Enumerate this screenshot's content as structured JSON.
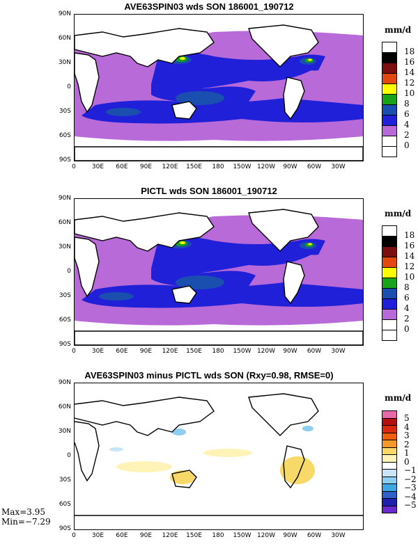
{
  "panels": [
    {
      "title": "AVE63SPIN03 wds SON 186001_190712",
      "units": "mm/d",
      "colorbar": {
        "labels": [
          "18",
          "16",
          "14",
          "12",
          "10",
          "8",
          "6",
          "4",
          "2",
          "0"
        ],
        "colors": [
          "#ffffff",
          "#000000",
          "#7a0f0f",
          "#e04a10",
          "#ffff00",
          "#1aa31a",
          "#1a4fb0",
          "#2020d8",
          "#b86ad8",
          "#ffffff",
          "#ffffff"
        ]
      }
    },
    {
      "title": "PICTL wds SON 186001_190712",
      "units": "mm/d",
      "colorbar": {
        "labels": [
          "18",
          "16",
          "14",
          "12",
          "10",
          "8",
          "6",
          "4",
          "2",
          "0"
        ],
        "colors": [
          "#ffffff",
          "#000000",
          "#7a0f0f",
          "#e04a10",
          "#ffff00",
          "#1aa31a",
          "#1a4fb0",
          "#2020d8",
          "#b86ad8",
          "#ffffff",
          "#ffffff"
        ]
      }
    },
    {
      "title": "AVE63SPIN03 minus PICTL wds SON (Rxy=0.98, RMSE=0)",
      "units": "mm/d",
      "colorbar": {
        "labels": [
          "5",
          "4",
          "3",
          "2",
          "1",
          "0",
          "−1",
          "−2",
          "−3",
          "−4",
          "−5"
        ],
        "colors": [
          "#e66aa8",
          "#b31010",
          "#d82a10",
          "#ee6010",
          "#f59a2a",
          "#f7d96a",
          "#fff3b8",
          "#ffffff",
          "#c9e4f7",
          "#8ccdf0",
          "#3ea6e0",
          "#3060c8",
          "#2020b0",
          "#6a2ad0"
        ]
      },
      "max_label": "Max=3.95",
      "min_label": "Min=−7.29"
    }
  ],
  "axes": {
    "y_ticks": [
      "90N",
      "60N",
      "30N",
      "0",
      "30S",
      "60S",
      "90S"
    ],
    "x_ticks": [
      "0",
      "30E",
      "60E",
      "90E",
      "120E",
      "150E",
      "180",
      "150W",
      "120W",
      "90W",
      "60W",
      "30W"
    ]
  },
  "chart_data": [
    {
      "type": "heatmap",
      "title": "AVE63SPIN03 wds SON 186001_190712",
      "z_label": "mm/d",
      "levels": [
        0,
        2,
        4,
        6,
        8,
        10,
        12,
        14,
        16,
        18
      ],
      "x_range": [
        0,
        360
      ],
      "y_range": [
        -90,
        90
      ]
    },
    {
      "type": "heatmap",
      "title": "PICTL wds SON 186001_190712",
      "z_label": "mm/d",
      "levels": [
        0,
        2,
        4,
        6,
        8,
        10,
        12,
        14,
        16,
        18
      ],
      "x_range": [
        0,
        360
      ],
      "y_range": [
        -90,
        90
      ]
    },
    {
      "type": "heatmap",
      "title": "AVE63SPIN03 minus PICTL wds SON (Rxy=0.98, RMSE=0)",
      "z_label": "mm/d",
      "levels": [
        -5,
        -4,
        -3,
        -2,
        -1,
        0,
        1,
        2,
        3,
        4,
        5
      ],
      "x_range": [
        0,
        360
      ],
      "y_range": [
        -90,
        90
      ],
      "max": 3.95,
      "min": -7.29
    }
  ]
}
